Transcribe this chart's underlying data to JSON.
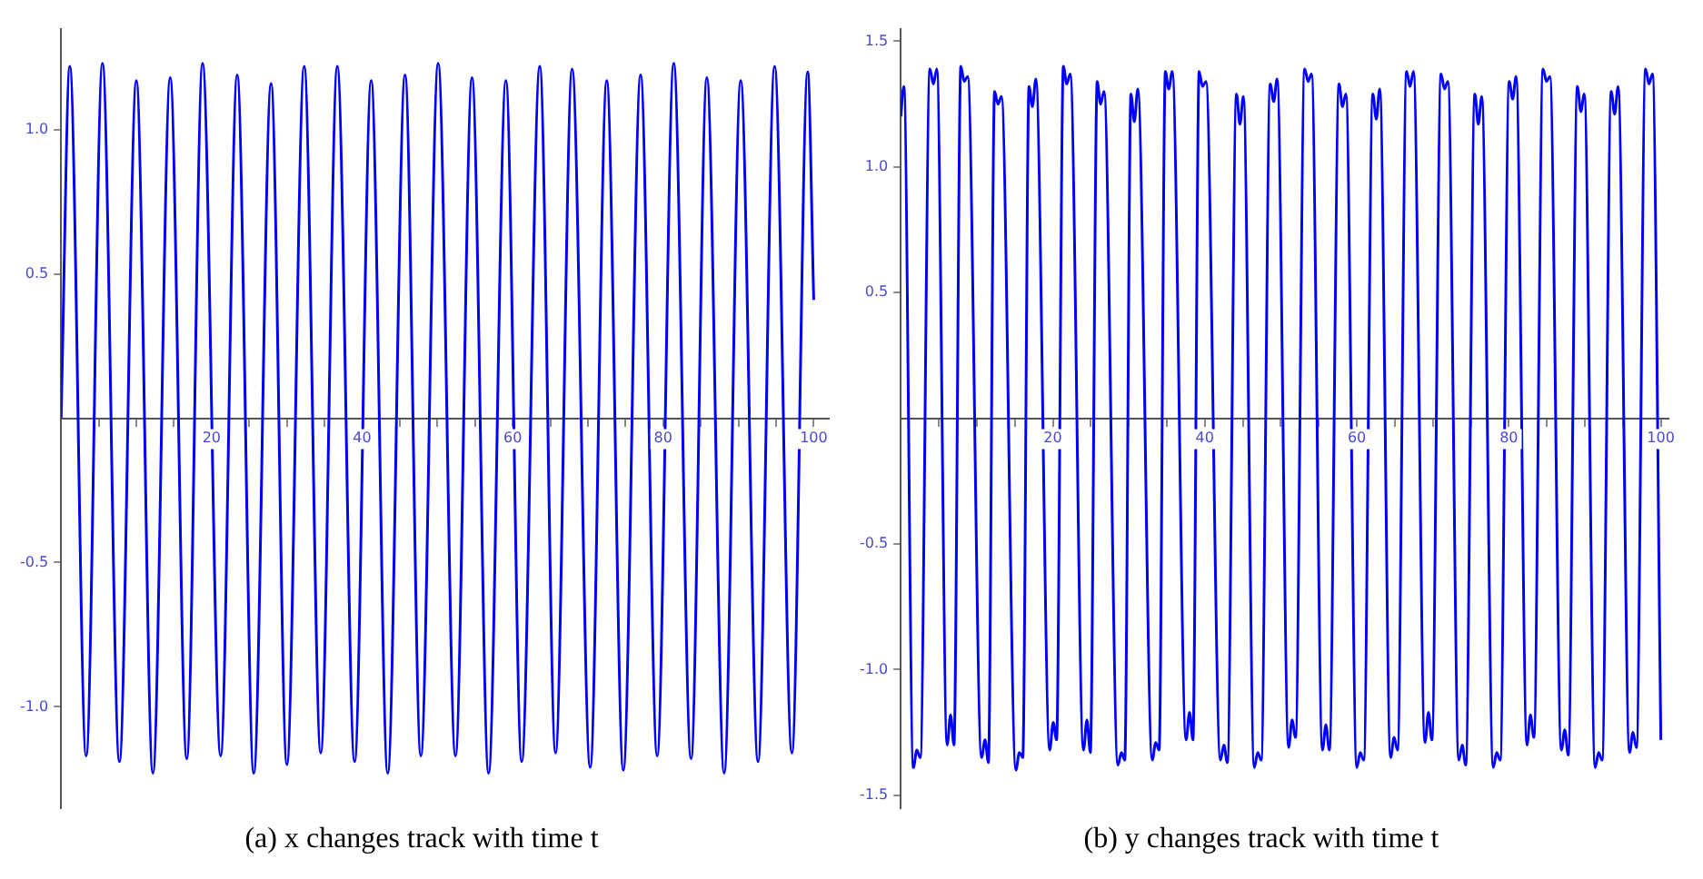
{
  "chart_data": [
    {
      "type": "line",
      "title": "(a) x changes track with time t",
      "xlim": [
        0,
        102
      ],
      "ylim": [
        -1.35,
        1.35
      ],
      "xticks": [
        {
          "value": 5,
          "label": null
        },
        {
          "value": 10,
          "label": null
        },
        {
          "value": 15,
          "label": null
        },
        20,
        {
          "value": 25,
          "label": null
        },
        {
          "value": 30,
          "label": null
        },
        {
          "value": 35,
          "label": null
        },
        40,
        {
          "value": 45,
          "label": null
        },
        {
          "value": 50,
          "label": null
        },
        {
          "value": 55,
          "label": null
        },
        60,
        {
          "value": 65,
          "label": null
        },
        {
          "value": 70,
          "label": null
        },
        {
          "value": 75,
          "label": null
        },
        80,
        {
          "value": 85,
          "label": null
        },
        {
          "value": 90,
          "label": null
        },
        {
          "value": 95,
          "label": null
        },
        100
      ],
      "yticks": [
        {
          "value": -1,
          "label": "-1.0"
        },
        {
          "value": -0.5,
          "label": "-0.5"
        },
        {
          "value": 0.5,
          "label": "0.5"
        },
        {
          "value": 1,
          "label": "1.0"
        }
      ],
      "series": [
        {
          "color": "#0000ff",
          "x": [
            0,
            1.16,
            3.33,
            5.5,
            7.75,
            10.0,
            12.2,
            14.5,
            16.7,
            18.8,
            21.2,
            23.4,
            25.6,
            27.9,
            30.0,
            32.3,
            34.5,
            36.7,
            39.0,
            41.2,
            43.4,
            45.7,
            47.8,
            50.1,
            52.4,
            54.6,
            56.8,
            59.1,
            61.2,
            63.6,
            65.7,
            67.9,
            70.3,
            72.5,
            74.7,
            77.0,
            79.2,
            81.4,
            83.7,
            85.8,
            88.1,
            90.3,
            92.6,
            94.8,
            97.1,
            99.2,
            100
          ],
          "values": [
            0,
            1.22,
            -1.17,
            1.23,
            -1.19,
            1.17,
            -1.23,
            1.18,
            -1.18,
            1.23,
            -1.17,
            1.19,
            -1.23,
            1.16,
            -1.2,
            1.22,
            -1.16,
            1.22,
            -1.19,
            1.17,
            -1.23,
            1.19,
            -1.17,
            1.23,
            -1.17,
            1.18,
            -1.23,
            1.17,
            -1.19,
            1.22,
            -1.16,
            1.21,
            -1.21,
            1.17,
            -1.22,
            1.19,
            -1.17,
            1.23,
            -1.18,
            1.18,
            -1.23,
            1.17,
            -1.19,
            1.22,
            -1.16,
            1.2,
            0.41
          ]
        }
      ]
    },
    {
      "type": "line",
      "title": "(b) y changes track with time t",
      "xlim": [
        0,
        101
      ],
      "ylim": [
        -1.55,
        1.55
      ],
      "xticks": [
        {
          "value": 5,
          "label": null
        },
        {
          "value": 10,
          "label": null
        },
        {
          "value": 15,
          "label": null
        },
        20,
        {
          "value": 25,
          "label": null
        },
        {
          "value": 30,
          "label": null
        },
        {
          "value": 35,
          "label": null
        },
        40,
        {
          "value": 45,
          "label": null
        },
        {
          "value": 50,
          "label": null
        },
        {
          "value": 55,
          "label": null
        },
        60,
        {
          "value": 65,
          "label": null
        },
        {
          "value": 70,
          "label": null
        },
        {
          "value": 75,
          "label": null
        },
        80,
        {
          "value": 85,
          "label": null
        },
        {
          "value": 90,
          "label": null
        },
        {
          "value": 95,
          "label": null
        },
        100
      ],
      "yticks": [
        {
          "value": -1.5,
          "label": "-1.5"
        },
        {
          "value": -1,
          "label": "-1.0"
        },
        {
          "value": -0.5,
          "label": "-0.5"
        },
        {
          "value": 0.5,
          "label": "0.5"
        },
        {
          "value": 1,
          "label": "1.0"
        },
        {
          "value": 1.5,
          "label": "1.5"
        }
      ],
      "series": [
        {
          "color": "#0000ff",
          "x": [
            0,
            0.4,
            1.66,
            2.11,
            2.56,
            3.84,
            4.29,
            4.74,
            6.1,
            6.55,
            7.0,
            7.9,
            8.35,
            8.8,
            10.63,
            11.08,
            11.53,
            12.34,
            12.79,
            13.24,
            15.15,
            15.6,
            16.05,
            16.87,
            17.32,
            17.77,
            19.6,
            20.05,
            20.5,
            21.39,
            21.84,
            22.29,
            24.04,
            24.49,
            24.94,
            25.84,
            26.29,
            26.74,
            28.57,
            29.02,
            29.47,
            30.28,
            30.73,
            31.18,
            33.09,
            33.54,
            33.99,
            34.81,
            35.26,
            35.71,
            37.54,
            37.99,
            38.44,
            39.25,
            39.7,
            40.15,
            42.06,
            42.51,
            42.96,
            44.17,
            44.62,
            45.07,
            46.51,
            46.96,
            47.41,
            48.61,
            49.06,
            49.51,
            51.03,
            51.48,
            51.93,
            53.14,
            53.59,
            54.04,
            55.48,
            55.93,
            56.38,
            57.66,
            58.11,
            58.56,
            60.0,
            60.45,
            60.9,
            62.11,
            62.56,
            63.01,
            64.45,
            64.9,
            65.35,
            66.55,
            67.0,
            67.45,
            68.97,
            69.42,
            69.87,
            71.08,
            71.53,
            71.98,
            73.42,
            73.87,
            74.32,
            75.53,
            75.98,
            76.43,
            77.95,
            78.4,
            78.85,
            80.05,
            80.5,
            80.95,
            82.39,
            82.84,
            83.29,
            84.5,
            84.95,
            85.4,
            86.91,
            87.36,
            87.81,
            89.02,
            89.47,
            89.92,
            91.36,
            91.81,
            92.26,
            93.47,
            93.92,
            94.37,
            95.88,
            96.33,
            96.78,
            97.99,
            98.44,
            98.89,
            100
          ],
          "values": [
            1.2,
            1.32,
            -1.39,
            -1.32,
            -1.35,
            1.39,
            1.33,
            1.39,
            -1.3,
            -1.18,
            -1.3,
            1.4,
            1.34,
            1.36,
            -1.35,
            -1.28,
            -1.37,
            1.3,
            1.25,
            1.28,
            -1.4,
            -1.33,
            -1.35,
            1.32,
            1.24,
            1.35,
            -1.32,
            -1.21,
            -1.28,
            1.4,
            1.33,
            1.37,
            -1.32,
            -1.2,
            -1.33,
            1.34,
            1.25,
            1.3,
            -1.38,
            -1.33,
            -1.36,
            1.29,
            1.18,
            1.31,
            -1.36,
            -1.29,
            -1.32,
            1.38,
            1.31,
            1.38,
            -1.28,
            -1.17,
            -1.28,
            1.38,
            1.32,
            1.34,
            -1.36,
            -1.3,
            -1.37,
            1.29,
            1.17,
            1.28,
            -1.39,
            -1.33,
            -1.36,
            1.33,
            1.26,
            1.35,
            -1.31,
            -1.2,
            -1.27,
            1.39,
            1.34,
            1.37,
            -1.32,
            -1.22,
            -1.32,
            1.33,
            1.24,
            1.29,
            -1.39,
            -1.33,
            -1.36,
            1.29,
            1.19,
            1.31,
            -1.35,
            -1.27,
            -1.32,
            1.38,
            1.32,
            1.38,
            -1.29,
            -1.17,
            -1.28,
            1.37,
            1.31,
            1.34,
            -1.36,
            -1.3,
            -1.38,
            1.29,
            1.17,
            1.28,
            -1.39,
            -1.33,
            -1.36,
            1.34,
            1.27,
            1.36,
            -1.3,
            -1.18,
            -1.27,
            1.39,
            1.34,
            1.36,
            -1.32,
            -1.24,
            -1.34,
            1.32,
            1.22,
            1.29,
            -1.39,
            -1.33,
            -1.36,
            1.3,
            1.21,
            1.32,
            -1.33,
            -1.25,
            -1.31,
            1.39,
            1.33,
            1.37,
            -1.28
          ]
        }
      ]
    }
  ]
}
